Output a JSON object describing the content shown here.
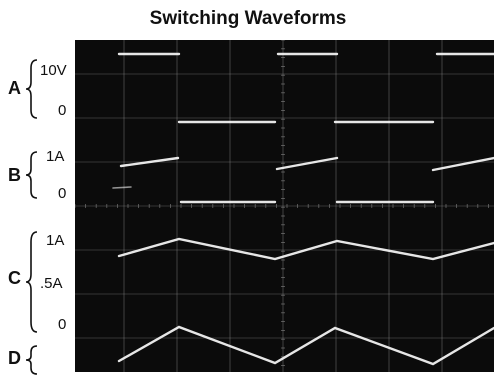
{
  "title": "Switching Waveforms",
  "channels": [
    {
      "id": "A",
      "labels": {
        "top": "10V",
        "bottom": "0"
      }
    },
    {
      "id": "B",
      "labels": {
        "top": "1A",
        "bottom": "0"
      }
    },
    {
      "id": "C",
      "labels": {
        "top": "1A",
        "mid": ".5A",
        "bottom": "0"
      }
    },
    {
      "id": "D",
      "labels": {}
    }
  ],
  "colors": {
    "screen": "#0b0b0b",
    "trace": "#f2f2f2",
    "grid": "#8a8a8a",
    "text": "#111111"
  }
}
